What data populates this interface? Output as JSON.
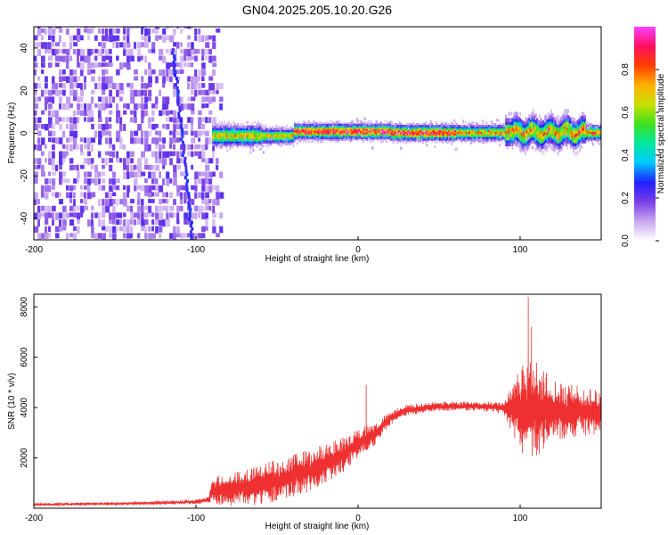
{
  "title": "GN04.2025.205.10.20.G26",
  "chart_data": [
    {
      "type": "heatmap",
      "xlabel": "Height of straight line (km)",
      "ylabel": "Frequency (Hz)",
      "xlim": [
        -200,
        150
      ],
      "ylim": [
        -50,
        50
      ],
      "xticks": [
        -200,
        -100,
        0,
        100
      ],
      "yticks": [
        -40,
        -20,
        0,
        20,
        40
      ],
      "colorbar": {
        "label": "Normalized spectral amplitude",
        "range": [
          0,
          1
        ],
        "ticks": [
          0,
          0.2,
          0.4,
          0.6,
          0.8
        ],
        "colors": [
          "#ffffff",
          "#c8a8f0",
          "#7a3ee6",
          "#2020ff",
          "#00c8ff",
          "#00e8a0",
          "#40e020",
          "#c8e000",
          "#ffb000",
          "#ff4000",
          "#ff1060",
          "#ff40ff"
        ]
      },
      "regions": [
        {
          "x_range": [
            -200,
            -90
          ],
          "freq_range": [
            -50,
            50
          ],
          "amplitude": 0.1,
          "pattern": "broadband noise"
        },
        {
          "x_range": [
            -105,
            -103
          ],
          "freq_range": [
            -50,
            40
          ],
          "amplitude": 0.25,
          "pattern": "diagonal streak"
        },
        {
          "x_range": [
            -90,
            150
          ],
          "freq_range": [
            -4,
            4
          ],
          "amplitude_peak": 1.0,
          "pattern": "narrow band centered near 0 Hz"
        }
      ]
    },
    {
      "type": "line",
      "xlabel": "Height of straight line (km)",
      "ylabel": "SNR (10 * v/v)",
      "xlim": [
        -200,
        150
      ],
      "ylim": [
        0,
        8500
      ],
      "xticks": [
        -200,
        -100,
        0,
        100
      ],
      "yticks": [
        2000,
        4000,
        6000,
        8000
      ],
      "series": [
        {
          "color": "#ee3030",
          "envelope": [
            {
              "x": -200,
              "mean": 150,
              "amplitude": 60
            },
            {
              "x": -150,
              "mean": 180,
              "amplitude": 60
            },
            {
              "x": -100,
              "mean": 250,
              "amplitude": 80
            },
            {
              "x": -92,
              "mean": 350,
              "amplitude": 100
            },
            {
              "x": -90,
              "mean": 700,
              "amplitude": 500
            },
            {
              "x": -70,
              "mean": 800,
              "amplitude": 600
            },
            {
              "x": -50,
              "mean": 1100,
              "amplitude": 700
            },
            {
              "x": -30,
              "mean": 1500,
              "amplitude": 700
            },
            {
              "x": -10,
              "mean": 2100,
              "amplitude": 600
            },
            {
              "x": 0,
              "mean": 2600,
              "amplitude": 500
            },
            {
              "x": 10,
              "mean": 2900,
              "amplitude": 350
            },
            {
              "x": 20,
              "mean": 3600,
              "amplitude": 250
            },
            {
              "x": 30,
              "mean": 3900,
              "amplitude": 180
            },
            {
              "x": 50,
              "mean": 4050,
              "amplitude": 150
            },
            {
              "x": 75,
              "mean": 4050,
              "amplitude": 150
            },
            {
              "x": 90,
              "mean": 4000,
              "amplitude": 200
            },
            {
              "x": 95,
              "mean": 3900,
              "amplitude": 800
            },
            {
              "x": 105,
              "mean": 3900,
              "amplitude": 2000
            },
            {
              "x": 120,
              "mean": 3900,
              "amplitude": 1000
            },
            {
              "x": 150,
              "mean": 3800,
              "amplitude": 700
            }
          ],
          "spikes": [
            {
              "x": 5,
              "y": 4900
            },
            {
              "x": 105,
              "y": 8400
            },
            {
              "x": 107,
              "y": 7200
            }
          ]
        }
      ]
    }
  ]
}
